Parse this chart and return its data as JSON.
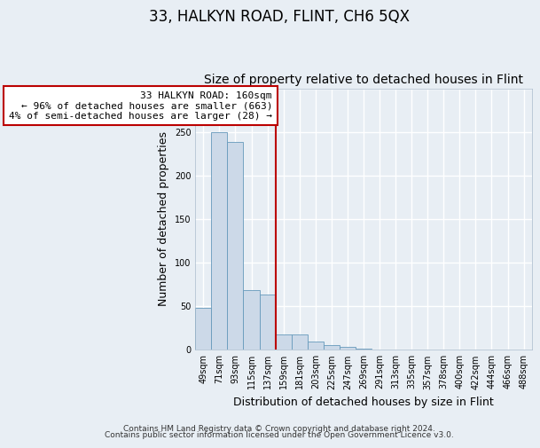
{
  "title": "33, HALKYN ROAD, FLINT, CH6 5QX",
  "subtitle": "Size of property relative to detached houses in Flint",
  "xlabel": "Distribution of detached houses by size in Flint",
  "ylabel": "Number of detached properties",
  "bar_color": "#ccd9e8",
  "bar_edge_color": "#6699bb",
  "categories": [
    "49sqm",
    "71sqm",
    "93sqm",
    "115sqm",
    "137sqm",
    "159sqm",
    "181sqm",
    "203sqm",
    "225sqm",
    "247sqm",
    "269sqm",
    "291sqm",
    "313sqm",
    "335sqm",
    "357sqm",
    "378sqm",
    "400sqm",
    "422sqm",
    "444sqm",
    "466sqm",
    "488sqm"
  ],
  "values": [
    48,
    250,
    238,
    68,
    63,
    18,
    18,
    9,
    5,
    3,
    1,
    0,
    0,
    0,
    0,
    0,
    0,
    0,
    0,
    0,
    0
  ],
  "vline_x_index": 5,
  "vline_color": "#bb0000",
  "annotation_text": "33 HALKYN ROAD: 160sqm\n← 96% of detached houses are smaller (663)\n4% of semi-detached houses are larger (28) →",
  "annotation_box_facecolor": "#ffffff",
  "annotation_box_edgecolor": "#bb0000",
  "ylim": [
    0,
    300
  ],
  "yticks": [
    0,
    50,
    100,
    150,
    200,
    250,
    300
  ],
  "background_color": "#e8eef4",
  "grid_color": "#ffffff",
  "title_fontsize": 12,
  "subtitle_fontsize": 10,
  "axis_label_fontsize": 9,
  "tick_fontsize": 7,
  "annotation_fontsize": 8,
  "footer_fontsize": 6.5,
  "footer_line1": "Contains HM Land Registry data © Crown copyright and database right 2024.",
  "footer_line2": "Contains public sector information licensed under the Open Government Licence v3.0."
}
